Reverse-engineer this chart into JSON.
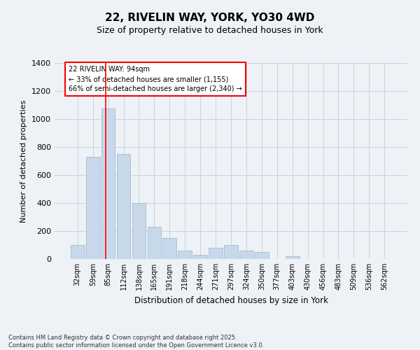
{
  "title_line1": "22, RIVELIN WAY, YORK, YO30 4WD",
  "title_line2": "Size of property relative to detached houses in York",
  "xlabel": "Distribution of detached houses by size in York",
  "ylabel": "Number of detached properties",
  "bar_color": "#c8d8eb",
  "bar_edge_color": "#9ab5cc",
  "categories": [
    "32sqm",
    "59sqm",
    "85sqm",
    "112sqm",
    "138sqm",
    "165sqm",
    "191sqm",
    "218sqm",
    "244sqm",
    "271sqm",
    "297sqm",
    "324sqm",
    "350sqm",
    "377sqm",
    "403sqm",
    "430sqm",
    "456sqm",
    "483sqm",
    "509sqm",
    "536sqm",
    "562sqm"
  ],
  "values": [
    100,
    730,
    1075,
    750,
    400,
    230,
    150,
    60,
    30,
    80,
    100,
    60,
    50,
    0,
    20,
    0,
    0,
    0,
    0,
    0,
    0
  ],
  "red_line_label": "22 RIVELIN WAY: 94sqm",
  "annotation_line2": "← 33% of detached houses are smaller (1,155)",
  "annotation_line3": "66% of semi-detached houses are larger (2,340) →",
  "ylim": [
    0,
    1400
  ],
  "yticks": [
    0,
    200,
    400,
    600,
    800,
    1000,
    1200,
    1400
  ],
  "grid_color": "#c8d4de",
  "footnote_line1": "Contains HM Land Registry data © Crown copyright and database right 2025.",
  "footnote_line2": "Contains public sector information licensed under the Open Government Licence v3.0.",
  "bg_color": "#eef2f6"
}
